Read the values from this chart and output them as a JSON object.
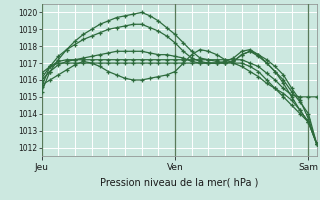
{
  "title": "Pression niveau de la mer( hPa )",
  "bg_color": "#cce8e0",
  "grid_color": "#b8d8d0",
  "line_color": "#2d6b3c",
  "ylim": [
    1011.5,
    1020.5
  ],
  "yticks": [
    1012,
    1013,
    1014,
    1015,
    1016,
    1017,
    1018,
    1019,
    1020
  ],
  "xtick_labels": [
    "Jeu",
    "Ven",
    "Sam"
  ],
  "xtick_positions": [
    0,
    16,
    32
  ],
  "vline_positions": [
    0,
    16,
    32
  ],
  "n_points": 34,
  "series": [
    [
      1015.3,
      1016.5,
      1017.2,
      1017.8,
      1018.3,
      1018.7,
      1019.0,
      1019.3,
      1019.5,
      1019.7,
      1019.8,
      1019.9,
      1020.0,
      1019.8,
      1019.5,
      1019.1,
      1018.7,
      1018.2,
      1017.7,
      1017.3,
      1017.2,
      1017.1,
      1017.0,
      1017.1,
      1017.5,
      1017.7,
      1017.5,
      1017.2,
      1016.8,
      1016.3,
      1015.5,
      1014.8,
      1013.7,
      1012.2
    ],
    [
      1015.6,
      1016.8,
      1017.4,
      1017.8,
      1018.1,
      1018.4,
      1018.6,
      1018.8,
      1019.0,
      1019.1,
      1019.2,
      1019.3,
      1019.3,
      1019.1,
      1018.9,
      1018.6,
      1018.2,
      1017.7,
      1017.3,
      1017.1,
      1017.0,
      1017.0,
      1017.0,
      1017.1,
      1017.5,
      1017.7,
      1017.4,
      1017.0,
      1016.5,
      1015.8,
      1015.0,
      1014.2,
      1013.5,
      1012.2
    ],
    [
      1016.1,
      1016.8,
      1017.1,
      1017.2,
      1017.2,
      1017.2,
      1017.2,
      1017.2,
      1017.2,
      1017.2,
      1017.2,
      1017.2,
      1017.2,
      1017.2,
      1017.2,
      1017.2,
      1017.2,
      1017.2,
      1017.2,
      1017.2,
      1017.2,
      1017.2,
      1017.2,
      1017.2,
      1017.2,
      1017.0,
      1016.8,
      1016.4,
      1016.0,
      1015.5,
      1015.1,
      1015.0,
      1015.0,
      1015.0
    ],
    [
      1016.4,
      1016.8,
      1017.0,
      1017.0,
      1017.0,
      1017.0,
      1017.0,
      1017.0,
      1017.0,
      1017.0,
      1017.0,
      1017.0,
      1017.0,
      1017.0,
      1017.0,
      1017.0,
      1017.0,
      1017.0,
      1017.0,
      1017.0,
      1017.0,
      1017.0,
      1017.0,
      1017.0,
      1017.0,
      1016.8,
      1016.5,
      1016.0,
      1015.5,
      1015.0,
      1014.5,
      1014.0,
      1013.5,
      1012.2
    ],
    [
      1016.0,
      1016.5,
      1016.9,
      1017.1,
      1017.2,
      1017.3,
      1017.4,
      1017.5,
      1017.6,
      1017.7,
      1017.7,
      1017.7,
      1017.7,
      1017.6,
      1017.5,
      1017.5,
      1017.4,
      1017.3,
      1017.1,
      1017.0,
      1017.0,
      1017.0,
      1017.1,
      1017.3,
      1017.7,
      1017.8,
      1017.5,
      1017.0,
      1016.5,
      1016.0,
      1015.3,
      1014.7,
      1014.0,
      1012.2
    ],
    [
      1015.7,
      1016.0,
      1016.3,
      1016.6,
      1016.9,
      1017.1,
      1017.0,
      1016.8,
      1016.5,
      1016.3,
      1016.1,
      1016.0,
      1016.0,
      1016.1,
      1016.2,
      1016.3,
      1016.5,
      1017.0,
      1017.5,
      1017.8,
      1017.7,
      1017.5,
      1017.2,
      1017.0,
      1016.8,
      1016.5,
      1016.2,
      1015.8,
      1015.5,
      1015.2,
      1014.8,
      1014.2,
      1013.5,
      1012.2
    ]
  ],
  "marker": "+",
  "markersize": 3.5,
  "linewidth": 0.9
}
